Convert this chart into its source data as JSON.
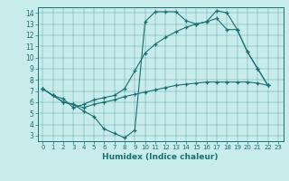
{
  "xlabel": "Humidex (Indice chaleur)",
  "bg_color": "#c8ecec",
  "line_color": "#1a7070",
  "xlim": [
    -0.5,
    23.5
  ],
  "ylim": [
    2.5,
    14.5
  ],
  "xticks": [
    0,
    1,
    2,
    3,
    4,
    5,
    6,
    7,
    8,
    9,
    10,
    11,
    12,
    13,
    14,
    15,
    16,
    17,
    18,
    19,
    20,
    21,
    22,
    23
  ],
  "yticks": [
    3,
    4,
    5,
    6,
    7,
    8,
    9,
    10,
    11,
    12,
    13,
    14
  ],
  "line1_x": [
    0,
    1,
    2,
    3,
    4,
    5,
    6,
    7,
    8,
    9,
    10,
    11,
    12,
    13,
    14,
    15,
    16,
    17,
    18,
    19,
    20,
    21,
    22
  ],
  "line1_y": [
    7.2,
    6.6,
    6.0,
    5.8,
    5.2,
    4.7,
    3.6,
    3.2,
    2.8,
    3.5,
    13.2,
    14.1,
    14.1,
    14.1,
    13.3,
    13.0,
    13.2,
    14.2,
    14.0,
    12.5,
    10.5,
    9.0,
    7.5
  ],
  "line2_x": [
    0,
    1,
    2,
    3,
    4,
    5,
    6,
    7,
    8,
    9,
    10,
    11,
    12,
    13,
    14,
    15,
    16,
    17,
    18,
    19,
    20,
    21,
    22
  ],
  "line2_y": [
    7.2,
    6.6,
    6.3,
    5.5,
    5.8,
    6.2,
    6.4,
    6.6,
    7.2,
    8.8,
    10.4,
    11.2,
    11.8,
    12.3,
    12.7,
    13.0,
    13.2,
    13.5,
    12.5,
    12.5,
    10.5,
    9.0,
    7.5
  ],
  "line3_x": [
    0,
    1,
    2,
    3,
    4,
    5,
    6,
    7,
    8,
    9,
    10,
    11,
    12,
    13,
    14,
    15,
    16,
    17,
    18,
    19,
    20,
    21,
    22
  ],
  "line3_y": [
    7.2,
    6.6,
    6.0,
    5.8,
    5.5,
    5.8,
    6.0,
    6.2,
    6.5,
    6.7,
    6.9,
    7.1,
    7.3,
    7.5,
    7.6,
    7.7,
    7.8,
    7.8,
    7.8,
    7.8,
    7.8,
    7.7,
    7.5
  ]
}
